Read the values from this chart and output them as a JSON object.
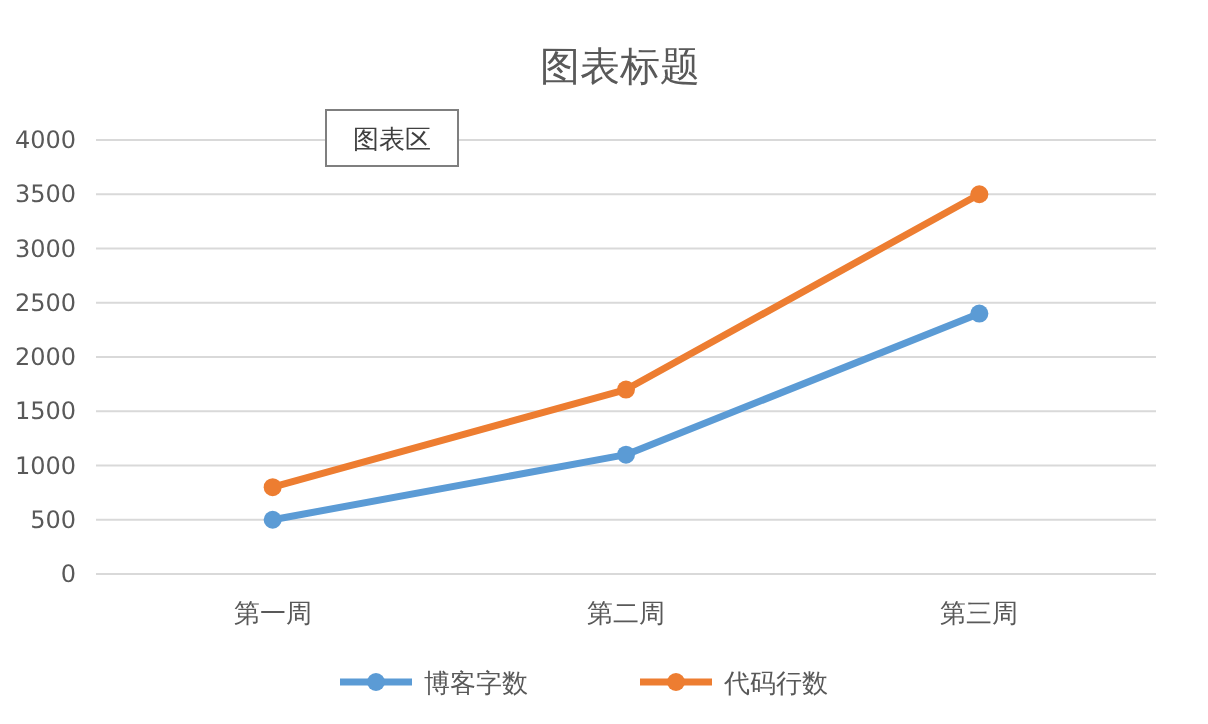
{
  "chart_data": {
    "type": "line",
    "title": "图表标题",
    "categories": [
      "第一周",
      "第二周",
      "第三周"
    ],
    "series": [
      {
        "name": "博客字数",
        "color": "#5b9bd5",
        "values": [
          500,
          1100,
          2400
        ]
      },
      {
        "name": "代码行数",
        "color": "#ed7d31",
        "values": [
          800,
          1700,
          3500
        ]
      }
    ],
    "ylim": [
      0,
      4000
    ],
    "yticks": [
      0,
      500,
      1000,
      1500,
      2000,
      2500,
      3000,
      3500,
      4000
    ],
    "grid": "y",
    "legend": "bottom",
    "marker": "circle",
    "line_style": "solid",
    "annotations": [
      "图表区"
    ]
  }
}
